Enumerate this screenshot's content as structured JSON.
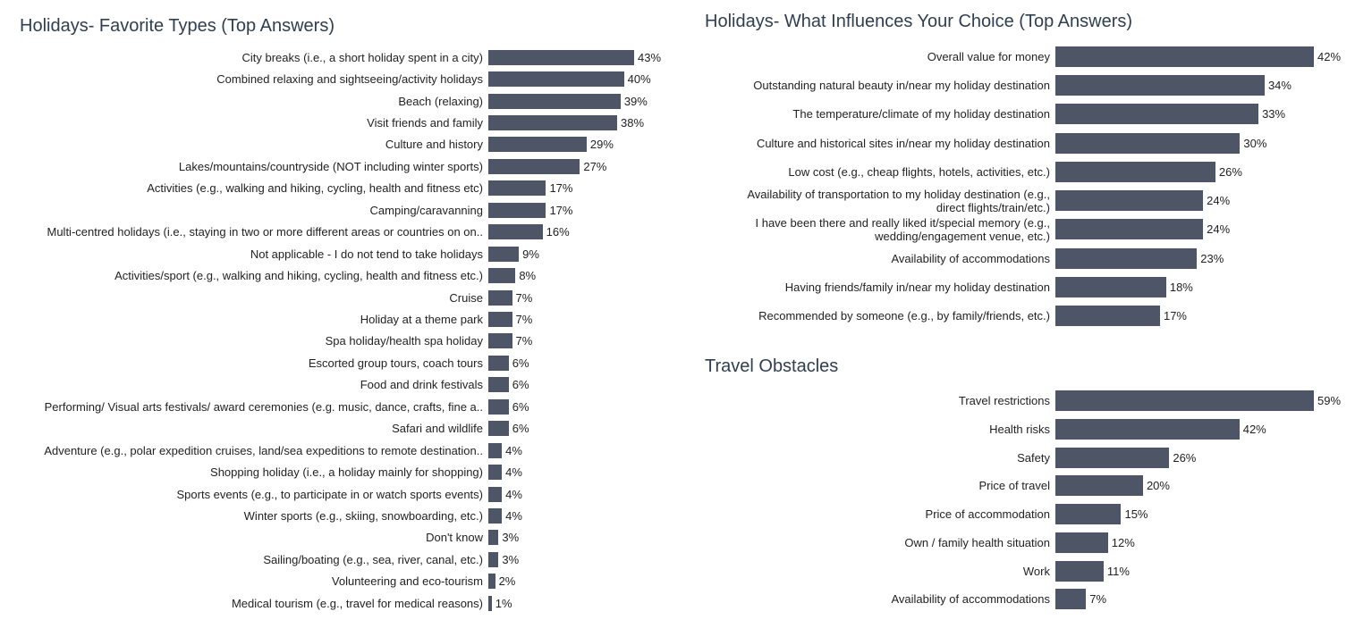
{
  "chart_data": [
    {
      "type": "bar",
      "title": "Holidays- Favorite Types (Top Answers)",
      "color": "#4e5566",
      "categories": [
        "City breaks (i.e., a short holiday spent in a city)",
        "Combined relaxing and sightseeing/activity holidays",
        "Beach (relaxing)",
        "Visit friends and family",
        "Culture and history",
        "Lakes/mountains/countryside (NOT including winter sports)",
        "Activities (e.g., walking and hiking, cycling, health and fitness etc)",
        "Camping/caravanning",
        "Multi-centred holidays (i.e., staying in two or more different areas or countries on on..",
        "Not applicable - I do not tend to take holidays",
        "Activities/sport (e.g., walking and hiking, cycling, health and fitness etc.)",
        "Cruise",
        "Holiday at a theme park",
        "Spa holiday/health spa holiday",
        "Escorted group tours, coach tours",
        "Food and drink festivals",
        "Performing/ Visual arts festivals/ award ceremonies (e.g. music, dance, crafts, fine a..",
        "Safari and wildlife",
        "Adventure (e.g., polar expedition cruises, land/sea expeditions to remote destination..",
        "Shopping holiday (i.e., a holiday mainly for shopping)",
        "Sports events (e.g., to participate in or watch sports events)",
        "Winter sports (e.g., skiing, snowboarding, etc.)",
        "Don't know",
        "Sailing/boating (e.g., sea, river, canal, etc.)",
        "Volunteering and eco-tourism",
        "Medical tourism (e.g., travel for medical reasons)"
      ],
      "values": [
        43,
        40,
        39,
        38,
        29,
        27,
        17,
        17,
        16,
        9,
        8,
        7,
        7,
        7,
        6,
        6,
        6,
        6,
        4,
        4,
        4,
        4,
        3,
        3,
        2,
        1
      ],
      "value_labels": [
        "43%",
        "40%",
        "39%",
        "38%",
        "29%",
        "27%",
        "17%",
        "17%",
        "16%",
        "9%",
        "8%",
        "7%",
        "7%",
        "7%",
        "6%",
        "6%",
        "6%",
        "6%",
        "4%",
        "4%",
        "4%",
        "4%",
        "3%",
        "3%",
        "2%",
        "1%"
      ]
    },
    {
      "type": "bar",
      "title": "Holidays- What Influences Your Choice (Top Answers)",
      "color": "#4e5566",
      "categories": [
        "Overall value for money",
        "Outstanding natural beauty in/near my holiday destination",
        "The temperature/climate of my holiday destination",
        "Culture and historical sites in/near my holiday destination",
        "Low cost (e.g., cheap flights, hotels, activities, etc.)",
        "Availability of transportation to my holiday destination (e.g., direct flights/train/etc.)",
        "I have been there and really liked it/special memory (e.g., wedding/engagement venue, etc.)",
        "Availability of accommodations",
        "Having friends/family in/near my holiday destination",
        "Recommended by someone (e.g., by family/friends, etc.)"
      ],
      "values": [
        42,
        34,
        33,
        30,
        26,
        24,
        24,
        23,
        18,
        17
      ],
      "value_labels": [
        "42%",
        "34%",
        "33%",
        "30%",
        "26%",
        "24%",
        "24%",
        "23%",
        "18%",
        "17%"
      ]
    },
    {
      "type": "bar",
      "title": "Travel Obstacles",
      "color": "#4e5566",
      "categories": [
        "Travel restrictions",
        "Health risks",
        "Safety",
        "Price of travel",
        "Price of accommodation",
        "Own / family health situation",
        "Work",
        "Availability of accommodations"
      ],
      "values": [
        59,
        42,
        26,
        20,
        15,
        12,
        11,
        7
      ],
      "value_labels": [
        "59%",
        "42%",
        "26%",
        "20%",
        "15%",
        "12%",
        "11%",
        "7%"
      ]
    }
  ]
}
